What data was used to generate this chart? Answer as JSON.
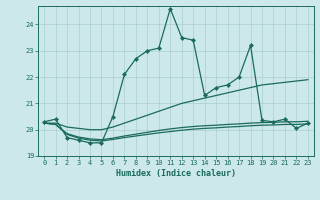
{
  "xlabel": "Humidex (Indice chaleur)",
  "bg_color": "#cce8e8",
  "grid_color": "#aacfcf",
  "line_color": "#1a6b5a",
  "xlim": [
    -0.5,
    23.5
  ],
  "ylim": [
    19.0,
    24.7
  ],
  "yticks": [
    19,
    20,
    21,
    22,
    23,
    24
  ],
  "xticks": [
    0,
    1,
    2,
    3,
    4,
    5,
    6,
    7,
    8,
    9,
    10,
    11,
    12,
    13,
    14,
    15,
    16,
    17,
    18,
    19,
    20,
    21,
    22,
    23
  ],
  "series1_x": [
    0,
    1,
    2,
    3,
    4,
    5,
    6,
    7,
    8,
    9,
    10,
    11,
    12,
    13,
    14,
    15,
    16,
    17,
    18,
    19,
    20,
    21,
    22,
    23
  ],
  "series1_y": [
    20.3,
    20.4,
    19.7,
    19.6,
    19.5,
    19.5,
    20.5,
    22.1,
    22.7,
    23.0,
    23.1,
    24.6,
    23.5,
    23.4,
    21.3,
    21.6,
    21.7,
    22.0,
    23.2,
    20.35,
    20.3,
    20.4,
    20.05,
    20.25
  ],
  "series2_x": [
    0,
    1,
    2,
    3,
    4,
    5,
    6,
    7,
    8,
    9,
    10,
    11,
    12,
    13,
    14,
    15,
    16,
    17,
    18,
    19,
    20,
    21,
    22,
    23
  ],
  "series2_y": [
    20.25,
    20.25,
    20.1,
    20.05,
    20.0,
    20.0,
    20.1,
    20.25,
    20.4,
    20.55,
    20.7,
    20.85,
    21.0,
    21.1,
    21.2,
    21.3,
    21.4,
    21.5,
    21.6,
    21.7,
    21.75,
    21.8,
    21.85,
    21.9
  ],
  "series3_x": [
    0,
    1,
    2,
    3,
    4,
    5,
    6,
    7,
    8,
    9,
    10,
    11,
    12,
    13,
    14,
    15,
    16,
    17,
    18,
    19,
    20,
    21,
    22,
    23
  ],
  "series3_y": [
    20.25,
    20.2,
    19.85,
    19.72,
    19.65,
    19.62,
    19.68,
    19.76,
    19.83,
    19.9,
    19.97,
    20.03,
    20.08,
    20.12,
    20.15,
    20.17,
    20.2,
    20.22,
    20.25,
    20.27,
    20.28,
    20.3,
    20.3,
    20.32
  ],
  "series4_x": [
    0,
    1,
    2,
    3,
    4,
    5,
    6,
    7,
    8,
    9,
    10,
    11,
    12,
    13,
    14,
    15,
    16,
    17,
    18,
    19,
    20,
    21,
    22,
    23
  ],
  "series4_y": [
    20.25,
    20.2,
    19.82,
    19.68,
    19.6,
    19.57,
    19.63,
    19.7,
    19.76,
    19.82,
    19.88,
    19.93,
    19.98,
    20.02,
    20.05,
    20.07,
    20.1,
    20.12,
    20.15,
    20.17,
    20.18,
    20.2,
    20.2,
    20.22
  ]
}
